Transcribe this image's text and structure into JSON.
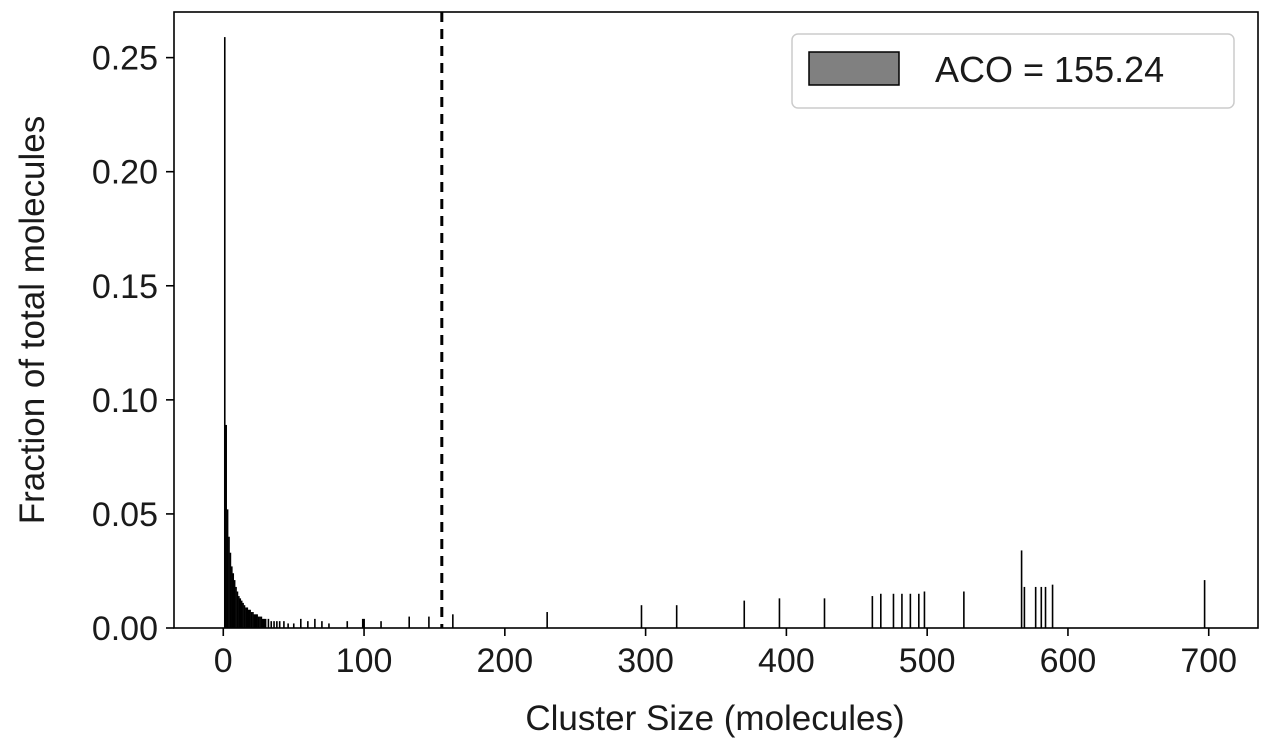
{
  "chart_data": {
    "type": "bar",
    "title": "",
    "xlabel": "Cluster Size (molecules)",
    "ylabel": "Fraction of total molecules",
    "xlim": [
      -35,
      735
    ],
    "ylim": [
      0,
      0.27
    ],
    "xticks": [
      0,
      100,
      200,
      300,
      400,
      500,
      600,
      700
    ],
    "yticks": [
      0.0,
      0.05,
      0.1,
      0.15,
      0.2,
      0.25
    ],
    "ytick_labels": [
      "0.00",
      "0.05",
      "0.10",
      "0.15",
      "0.20",
      "0.25"
    ],
    "grid": false,
    "legend": {
      "position": "top-right",
      "entries": [
        {
          "label": "ACO = 155.24",
          "color": "#808080"
        }
      ]
    },
    "reference_line": {
      "x": 155.24,
      "style": "dashed",
      "color": "#000000"
    },
    "bar_color": "#000000",
    "series": [
      {
        "x": [
          1,
          2,
          3,
          4,
          5,
          6,
          7,
          8,
          9,
          10,
          11,
          12,
          13,
          14,
          15,
          16,
          17,
          18,
          19,
          20,
          21,
          22,
          23,
          24,
          25,
          26,
          27,
          28,
          29,
          30,
          32,
          34,
          36,
          38,
          40,
          43,
          46,
          50,
          55,
          60,
          65,
          70,
          75,
          88,
          99,
          100,
          112,
          132,
          146,
          163,
          230,
          297,
          322,
          370,
          395,
          427,
          461,
          467,
          476,
          482,
          488,
          494,
          498,
          526,
          567,
          569,
          577,
          581,
          584,
          589,
          697
        ],
        "values": [
          0.259,
          0.089,
          0.052,
          0.04,
          0.033,
          0.027,
          0.024,
          0.021,
          0.018,
          0.016,
          0.014,
          0.013,
          0.012,
          0.011,
          0.01,
          0.009,
          0.009,
          0.008,
          0.008,
          0.007,
          0.007,
          0.006,
          0.006,
          0.006,
          0.005,
          0.005,
          0.005,
          0.004,
          0.004,
          0.004,
          0.004,
          0.003,
          0.003,
          0.003,
          0.003,
          0.003,
          0.002,
          0.002,
          0.004,
          0.003,
          0.004,
          0.003,
          0.002,
          0.003,
          0.004,
          0.004,
          0.003,
          0.005,
          0.005,
          0.006,
          0.007,
          0.01,
          0.01,
          0.012,
          0.013,
          0.013,
          0.014,
          0.015,
          0.015,
          0.015,
          0.015,
          0.015,
          0.016,
          0.016,
          0.034,
          0.018,
          0.018,
          0.018,
          0.018,
          0.019,
          0.021
        ]
      }
    ]
  }
}
